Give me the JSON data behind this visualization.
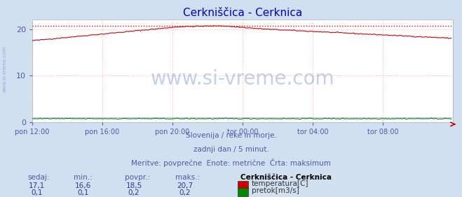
{
  "title": "Cerkniščica - Cerknica",
  "title_color": "#0000cc",
  "bg_color": "#d0e0f0",
  "plot_bg_color": "#ffffff",
  "grid_color": "#ffaaaa",
  "xlabel_color": "#5555aa",
  "ylabel_color": "#5555aa",
  "x_tick_labels": [
    "pon 12:00",
    "pon 16:00",
    "pon 20:00",
    "tor 00:00",
    "tor 04:00",
    "tor 08:00"
  ],
  "x_tick_positions": [
    0,
    48,
    96,
    144,
    192,
    240
  ],
  "x_total_points": 288,
  "y_ticks": [
    0,
    10,
    20
  ],
  "ylim": [
    0,
    22
  ],
  "xlim": [
    0,
    288
  ],
  "temp_max_line": 20.7,
  "temp_max_color": "#ff0000",
  "temp_line_color": "#cc0000",
  "flow_line_color": "#008800",
  "flow_max_color": "#0000cc",
  "watermark_text": "www.si-vreme.com",
  "watermark_color": "#5577cc",
  "watermark_alpha": 0.35,
  "sub_text1": "Slovenija / reke in morje.",
  "sub_text2": "zadnji dan / 5 minut.",
  "sub_text3": "Meritve: povprečne  Enote: metrične  Črta: maksimum",
  "sub_text_color": "#5555aa",
  "table_header": [
    "sedaj:",
    "min.:",
    "povpr.:",
    "maks.:"
  ],
  "table_header_color": "#5555aa",
  "legend_title": "Cerkniščica - Cerknica",
  "legend_title_color": "#000000",
  "legend_entries": [
    "temperatura[C]",
    "pretok[m3/s]"
  ],
  "legend_colors": [
    "#cc0000",
    "#008800"
  ],
  "row1_values": [
    "17,1",
    "16,6",
    "18,5",
    "20,7"
  ],
  "row2_values": [
    "0,1",
    "0,1",
    "0,2",
    "0,2"
  ],
  "value_color": "#333399",
  "left_label": "www.si-vreme.com",
  "left_label_color": "#5577cc",
  "arrow_color": "#cc0000"
}
